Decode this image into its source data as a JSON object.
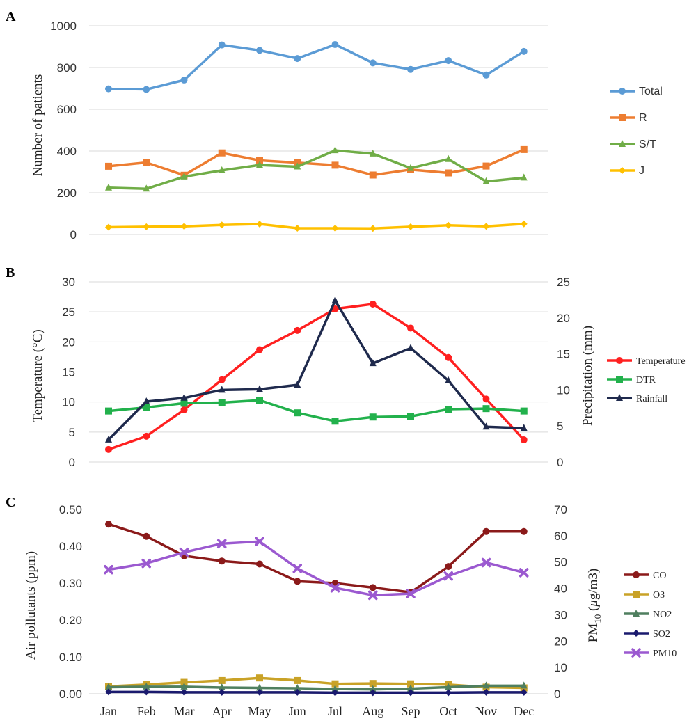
{
  "chart_data": [
    {
      "panel": "A",
      "type": "line",
      "categories": [
        "Jan",
        "Feb",
        "Mar",
        "Apr",
        "May",
        "Jun",
        "Jul",
        "Aug",
        "Sep",
        "Oct",
        "Nov",
        "Dec"
      ],
      "ylabel": "Number of patients",
      "ylim": [
        0,
        1000
      ],
      "yticks": [
        "0",
        "200",
        "400",
        "600",
        "800",
        "1000"
      ],
      "grid": true,
      "legend_position": "right",
      "series": [
        {
          "name": "Total",
          "color": "#5b9bd5",
          "marker": "circle",
          "values": [
            698,
            695,
            740,
            908,
            882,
            843,
            910,
            822,
            791,
            833,
            764,
            877
          ]
        },
        {
          "name": "R",
          "color": "#ed7d31",
          "marker": "square",
          "values": [
            327,
            345,
            284,
            391,
            355,
            344,
            332,
            285,
            311,
            295,
            328,
            407
          ]
        },
        {
          "name": "S/T",
          "color": "#70ad47",
          "marker": "triangle",
          "values": [
            224,
            219,
            277,
            307,
            333,
            325,
            403,
            387,
            318,
            361,
            254,
            272
          ]
        },
        {
          "name": "J",
          "color": "#ffc000",
          "marker": "diamond",
          "values": [
            35,
            37,
            39,
            46,
            50,
            30,
            30,
            29,
            37,
            44,
            39,
            51
          ]
        }
      ]
    },
    {
      "panel": "B",
      "type": "line",
      "categories": [
        "Jan",
        "Feb",
        "Mar",
        "Apr",
        "May",
        "Jun",
        "Jul",
        "Aug",
        "Sep",
        "Oct",
        "Nov",
        "Dec"
      ],
      "ylabel": "Temperature (°C)",
      "ylabel2": "Precipitation (mm)",
      "ylim": [
        0,
        30
      ],
      "ylim2": [
        0,
        25
      ],
      "yticks": [
        "0",
        "5",
        "10",
        "15",
        "20",
        "25",
        "30"
      ],
      "yticks2": [
        "0",
        "5",
        "10",
        "15",
        "20",
        "25"
      ],
      "grid": true,
      "legend_position": "right",
      "series": [
        {
          "name": "Temperature",
          "axis": "left",
          "color": "#ff2020",
          "marker": "circle",
          "values": [
            2.1,
            4.3,
            8.7,
            13.7,
            18.7,
            21.9,
            25.5,
            26.3,
            22.3,
            17.4,
            10.5,
            3.7
          ]
        },
        {
          "name": "DTR",
          "axis": "left",
          "color": "#22b14c",
          "marker": "square",
          "values": [
            8.5,
            9.1,
            9.8,
            9.9,
            10.3,
            8.2,
            6.8,
            7.5,
            7.6,
            8.8,
            8.9,
            8.5
          ]
        },
        {
          "name": "Rainfall",
          "axis": "right",
          "color": "#1f2a4d",
          "marker": "triangle",
          "values": [
            3.1,
            8.4,
            8.9,
            10.0,
            10.1,
            10.7,
            22.4,
            13.7,
            15.8,
            11.3,
            4.9,
            4.7
          ]
        }
      ]
    },
    {
      "panel": "C",
      "type": "line",
      "categories": [
        "Jan",
        "Feb",
        "Mar",
        "Apr",
        "May",
        "Jun",
        "Jul",
        "Aug",
        "Sep",
        "Oct",
        "Nov",
        "Dec"
      ],
      "ylabel": "Air pollutants (ppm)",
      "ylabel2_main": "PM",
      "ylabel2_sub": "10",
      "ylabel2_unit_open": " (",
      "ylabel2_unit_mu": "μ",
      "ylabel2_unit_rest": "g/m3)",
      "ylim": [
        0,
        0.5
      ],
      "ylim2": [
        0,
        70
      ],
      "yticks": [
        "0.00",
        "0.10",
        "0.20",
        "0.30",
        "0.40",
        "0.50"
      ],
      "yticks2": [
        "0",
        "10",
        "20",
        "30",
        "40",
        "50",
        "60",
        "70"
      ],
      "grid": false,
      "legend_position": "right",
      "series": [
        {
          "name": "CO",
          "axis": "left",
          "color": "#8b1a1a",
          "marker": "circle",
          "values": [
            0.46,
            0.427,
            0.374,
            0.36,
            0.352,
            0.305,
            0.3,
            0.288,
            0.275,
            0.345,
            0.44,
            0.44
          ]
        },
        {
          "name": "O3",
          "axis": "left",
          "color": "#c9a227",
          "marker": "square",
          "values": [
            0.02,
            0.025,
            0.031,
            0.036,
            0.043,
            0.036,
            0.027,
            0.028,
            0.027,
            0.025,
            0.018,
            0.016
          ]
        },
        {
          "name": "NO2",
          "axis": "left",
          "color": "#4f7f5f",
          "marker": "triangle",
          "values": [
            0.018,
            0.019,
            0.019,
            0.017,
            0.016,
            0.015,
            0.013,
            0.012,
            0.014,
            0.018,
            0.022,
            0.022
          ]
        },
        {
          "name": "SO2",
          "axis": "left",
          "color": "#1a1a6e",
          "marker": "diamond",
          "values": [
            0.005,
            0.005,
            0.004,
            0.004,
            0.004,
            0.004,
            0.003,
            0.003,
            0.003,
            0.003,
            0.004,
            0.004
          ]
        },
        {
          "name": "PM10",
          "axis": "right",
          "color": "#9b59d0",
          "marker": "x",
          "values": [
            47.1,
            49.5,
            53.7,
            57.0,
            57.8,
            47.6,
            40.2,
            37.4,
            38.0,
            44.7,
            49.8,
            46.0
          ]
        }
      ]
    }
  ],
  "panel_labels": [
    "A",
    "B",
    "C"
  ]
}
